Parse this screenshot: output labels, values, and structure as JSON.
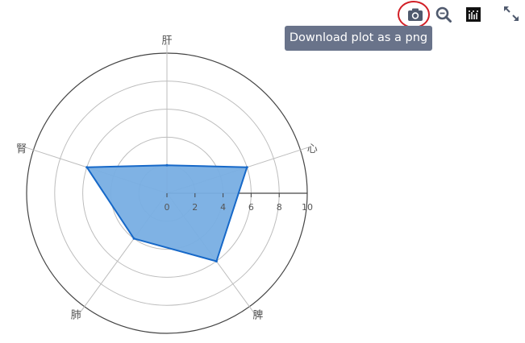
{
  "modebar": {
    "buttons": [
      {
        "name": "camera-icon",
        "label": "Download plot as a png"
      },
      {
        "name": "zoom-icon",
        "label": "Zoom"
      },
      {
        "name": "plotly-logo",
        "label": "Produced with Plotly"
      },
      {
        "name": "fullscreen-icon",
        "label": "Toggle fullscreen"
      }
    ],
    "tooltip": "Download plot as a png"
  },
  "colors": {
    "fill": "#78aee3",
    "line": "#1668c8",
    "grid": "#bdbdbd",
    "outer": "#444444",
    "label": "#555555",
    "tooltip": "#69738a",
    "highlight": "#d21f26"
  },
  "chart_data": {
    "type": "radar",
    "categories": [
      "肝",
      "心",
      "脾",
      "肺",
      "腎"
    ],
    "values": [
      2,
      6,
      6,
      4,
      6
    ],
    "radial_range": [
      0,
      10
    ],
    "radial_ticks": [
      0,
      2,
      4,
      6,
      8,
      10
    ],
    "grid": true,
    "legend": "none"
  }
}
